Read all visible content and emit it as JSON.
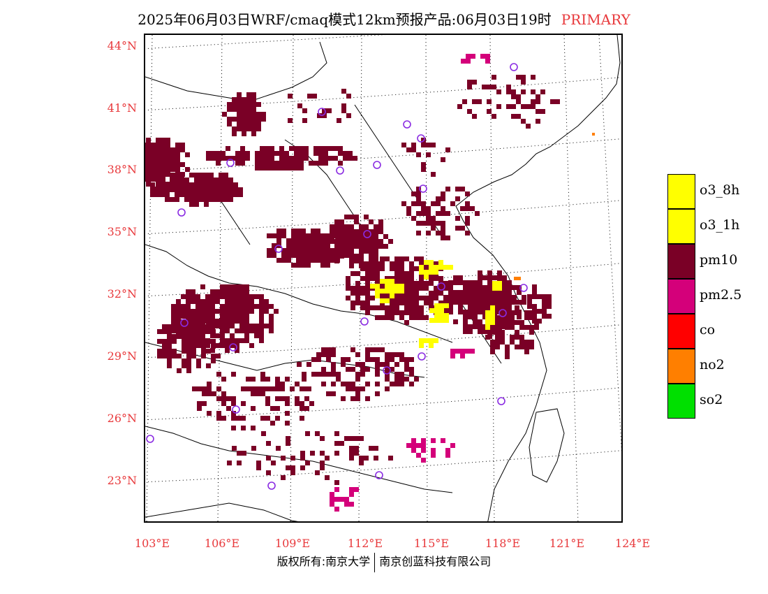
{
  "title": {
    "main": "2025年06月03日WRF/cmaq模式12km预报产品:06月03日19时",
    "tag": "PRIMARY"
  },
  "axes": {
    "lat_labels": [
      "44°N",
      "41°N",
      "38°N",
      "35°N",
      "32°N",
      "29°N",
      "26°N",
      "23°N"
    ],
    "lon_labels": [
      "103°E",
      "106°E",
      "109°E",
      "112°E",
      "115°E",
      "118°E",
      "121°E",
      "124°E"
    ]
  },
  "legend": [
    {
      "label": "o3_8h",
      "color": "#ffff00"
    },
    {
      "label": "o3_1h",
      "color": "#ffff00"
    },
    {
      "label": "pm10",
      "color": "#7a0026"
    },
    {
      "label": "pm2.5",
      "color": "#d4007a"
    },
    {
      "label": "co",
      "color": "#ff0000"
    },
    {
      "label": "no2",
      "color": "#ff7f00"
    },
    {
      "label": "so2",
      "color": "#00e000"
    }
  ],
  "colors": {
    "pm10": "#7a0026",
    "pm25": "#d4007a",
    "o3": "#ffff00",
    "no2": "#ff7f00",
    "station": "#8a2be2",
    "label_red": "#e8383b"
  },
  "copyright": {
    "left": "版权所有:南京大学",
    "right": "南京创蓝科技有限公司"
  }
}
